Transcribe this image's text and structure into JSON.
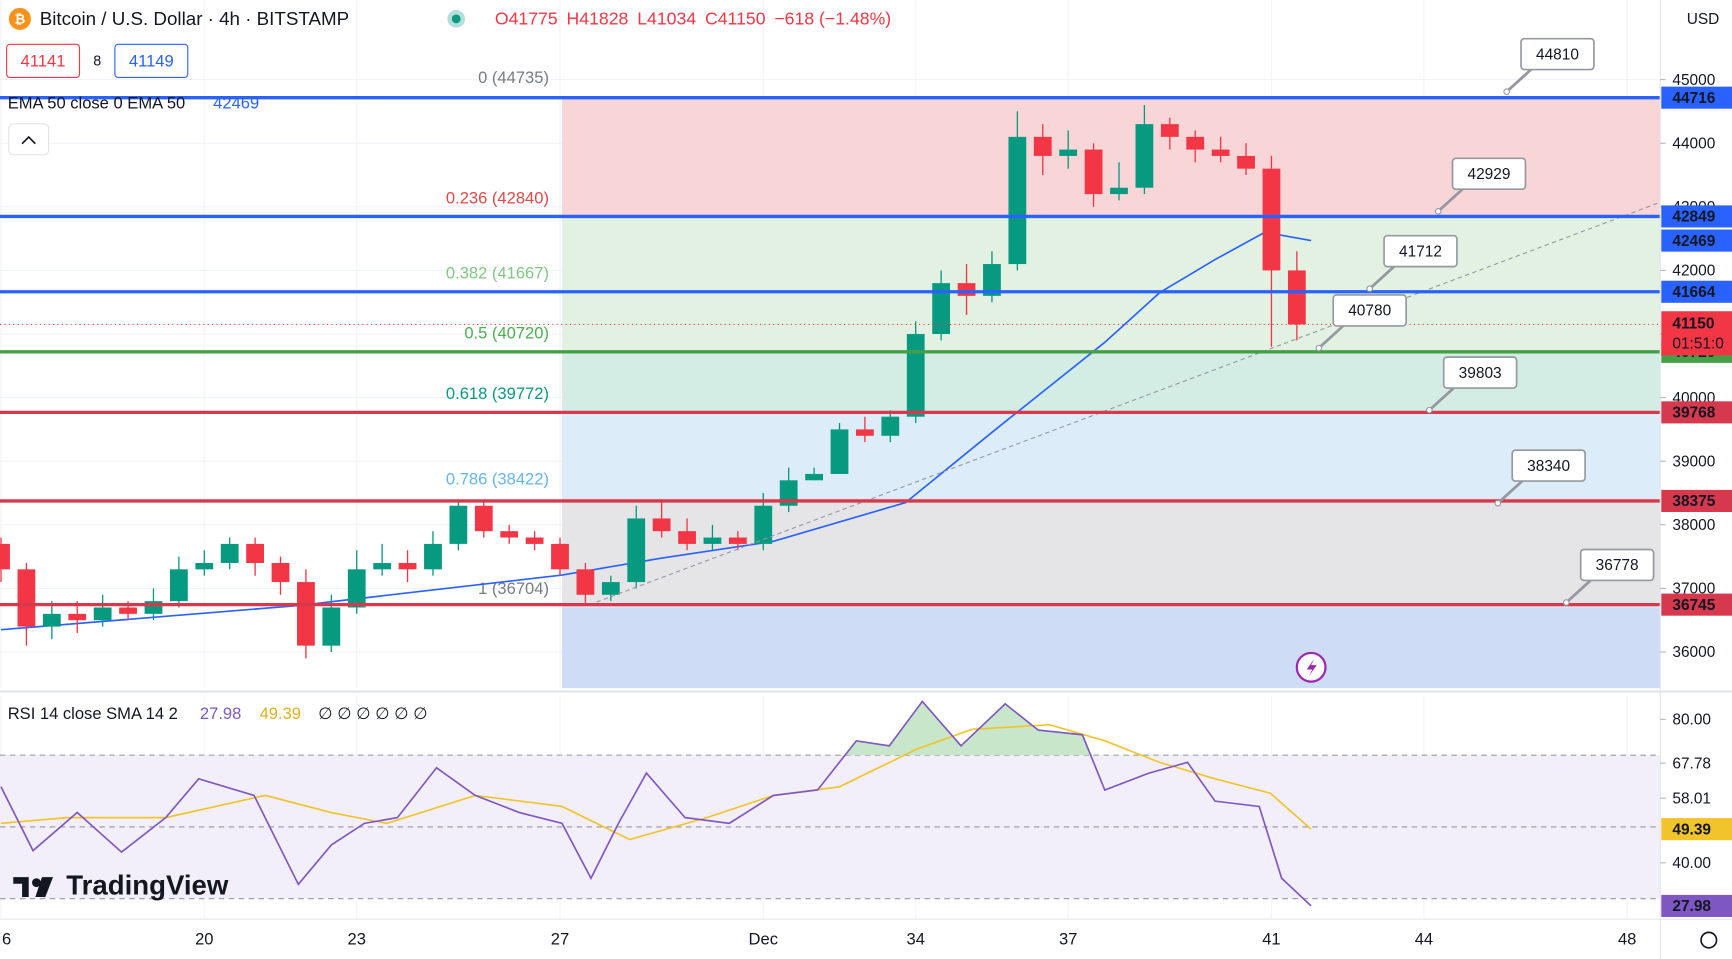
{
  "header": {
    "title": "Bitcoin / U.S. Dollar · 4h · BITSTAMP",
    "ohlc": [
      "O41775",
      "H41828",
      "L41034",
      "C41150",
      "−618 (−1.48%)"
    ],
    "bid": "41141",
    "spread": "8",
    "ask": "41149",
    "currency": "USD"
  },
  "chart_data": [
    {
      "type": "candlestick",
      "xlim": [
        15.98,
        48.65
      ],
      "xticks": [
        {
          "value": 16,
          "label": "6"
        },
        20,
        23,
        27,
        {
          "value": 31,
          "label": "Dec"
        },
        34,
        37,
        41,
        44,
        48
      ],
      "ylim": [
        35430,
        46250
      ],
      "yticks": [
        36000,
        37000,
        38000,
        39000,
        40000,
        41000,
        42000,
        43000,
        44000,
        45000
      ],
      "grid": true,
      "colors": {
        "up": "#089981",
        "down": "#f23645"
      },
      "x": [
        16,
        16.5,
        17,
        17.5,
        18,
        18.5,
        19,
        19.5,
        20,
        20.5,
        21,
        21.5,
        22,
        22.5,
        23,
        23.5,
        24,
        24.5,
        25,
        25.5,
        26,
        26.5,
        27,
        27.5,
        28,
        28.5,
        29,
        29.5,
        30,
        30.5,
        31,
        31.5,
        32,
        32.5,
        33,
        33.5,
        34,
        34.5,
        35,
        35.5,
        36,
        36.5,
        37,
        37.5,
        38,
        38.5,
        39,
        39.5,
        40,
        40.5,
        41,
        41.5
      ],
      "open": [
        37700,
        37300,
        36400,
        36600,
        36500,
        36700,
        36600,
        36800,
        37300,
        37400,
        37700,
        37400,
        37100,
        36100,
        36700,
        37300,
        37400,
        37300,
        37700,
        38300,
        37900,
        37800,
        37700,
        37300,
        36900,
        37100,
        38100,
        37900,
        37700,
        37800,
        37700,
        38300,
        38700,
        38800,
        39500,
        39400,
        39700,
        41000,
        41800,
        41600,
        42100,
        44100,
        43800,
        43900,
        43200,
        43300,
        44300,
        44100,
        43900,
        43800,
        43600,
        42000
      ],
      "high": [
        37800,
        37400,
        36800,
        36800,
        36900,
        36800,
        37000,
        37500,
        37600,
        37800,
        37800,
        37500,
        37300,
        36900,
        37600,
        37700,
        37600,
        37900,
        38400,
        38400,
        38000,
        37900,
        37800,
        37400,
        37200,
        38300,
        38400,
        38100,
        38000,
        37900,
        38500,
        38900,
        38900,
        39600,
        39700,
        39800,
        41200,
        42000,
        42100,
        42300,
        44500,
        44300,
        44200,
        44000,
        43700,
        44600,
        44400,
        44200,
        44100,
        44000,
        43800,
        42300
      ],
      "low": [
        37100,
        36100,
        36200,
        36300,
        36400,
        36500,
        36500,
        36700,
        37200,
        37300,
        37200,
        36900,
        35900,
        36000,
        36600,
        37200,
        37100,
        37200,
        37600,
        37800,
        37700,
        37600,
        37200,
        36750,
        36800,
        37000,
        37800,
        37600,
        37600,
        37600,
        37600,
        38200,
        38700,
        38800,
        39300,
        39300,
        39600,
        40900,
        41300,
        41500,
        42000,
        43500,
        43600,
        43000,
        43100,
        43200,
        43900,
        43700,
        43700,
        43500,
        40800,
        40900
      ],
      "close": [
        37300,
        36400,
        36600,
        36500,
        36700,
        36600,
        36800,
        37300,
        37400,
        37700,
        37400,
        37100,
        36100,
        36700,
        37300,
        37400,
        37300,
        37700,
        38300,
        37900,
        37800,
        37700,
        37300,
        36900,
        37100,
        38100,
        37900,
        37700,
        37800,
        37700,
        38300,
        38700,
        38800,
        39500,
        39400,
        39700,
        41000,
        41800,
        41600,
        42100,
        44100,
        43800,
        43900,
        43200,
        43300,
        44300,
        44100,
        43900,
        43800,
        43600,
        42000,
        41150
      ],
      "last": {
        "value": 41150,
        "countdown": "01:51:0",
        "color": "#f23645"
      },
      "ema": {
        "name": "EMA 50 close 0 EMA 50",
        "value": 42469,
        "color": "#2962ff",
        "x": [
          16,
          21.85,
          27.04,
          29.02,
          31.2,
          33.8,
          35.54,
          37.72,
          38.8,
          39.89,
          40.87,
          41.78
        ],
        "values": [
          36350,
          36730,
          37210,
          37480,
          37740,
          38350,
          39480,
          40870,
          41650,
          42170,
          42600,
          42469
        ]
      },
      "fib": {
        "start": 27.04,
        "levels": [
          {
            "label": "0 (44735)",
            "price": 44735,
            "color": "#787b86"
          },
          {
            "label": "0.236 (42840)",
            "price": 42840,
            "color": "#e04848"
          },
          {
            "label": "0.382 (41667)",
            "price": 41667,
            "color": "#81c784"
          },
          {
            "label": "0.5 (40720)",
            "price": 40720,
            "color": "#4caf50"
          },
          {
            "label": "0.618 (39772)",
            "price": 39772,
            "color": "#089981"
          },
          {
            "label": "0.786 (38422)",
            "price": 38422,
            "color": "#64b5f6"
          },
          {
            "label": "1 (36704)",
            "price": 36704,
            "color": "#787b86"
          }
        ],
        "zone_colors": [
          "#f8d6d8",
          "#e2f1e2",
          "#e2f1e2",
          "#d4ede4",
          "#dcecf8",
          "#e5e5e8",
          "#cfdcf6"
        ]
      },
      "levels": [
        {
          "value": 44716,
          "color": "#2962ff"
        },
        {
          "value": 42849,
          "color": "#2962ff"
        },
        {
          "value": 41664,
          "color": "#2962ff"
        },
        {
          "value": 40720,
          "color": "#43a047"
        },
        {
          "value": 39768,
          "color": "#d6394d"
        },
        {
          "value": 38375,
          "color": "#d6394d"
        },
        {
          "value": 36745,
          "color": "#d6394d"
        }
      ],
      "callouts": [
        44810,
        42929,
        41712,
        40780,
        39803,
        38340,
        36778
      ]
    },
    {
      "type": "line",
      "name": "RSI 14 close SMA 14 2",
      "placeholders": "∅ ∅ ∅ ∅ ∅ ∅",
      "xlim": [
        15.98,
        48.65
      ],
      "ylim": [
        24.3,
        86.5
      ],
      "yticks": [
        {
          "value": 40,
          "label": "40.00"
        },
        58.01,
        67.78,
        {
          "value": 80,
          "label": "80.00"
        }
      ],
      "levels": [
        70,
        50,
        30
      ],
      "series": [
        {
          "color": "#7e57c2",
          "last": 27.98,
          "x": [
            16,
            16.63,
            17.5,
            18.37,
            19.24,
            19.89,
            20.98,
            21.85,
            22.5,
            23.15,
            23.8,
            24.57,
            25.33,
            26.2,
            27.04,
            27.61,
            28.15,
            28.7,
            29.46,
            30.33,
            31.2,
            32.07,
            32.83,
            33.48,
            34.13,
            34.89,
            35.76,
            36.41,
            37.28,
            37.72,
            38.59,
            39.35,
            39.89,
            40.76,
            41.2,
            41.78
          ],
          "values": [
            61.2,
            43.4,
            54,
            43,
            52.6,
            63.4,
            58.8,
            34,
            45,
            51,
            52.6,
            66.5,
            58.8,
            54,
            51,
            35.7,
            51,
            65,
            52.6,
            51,
            58.8,
            60.3,
            74,
            72.6,
            85,
            72.6,
            84.3,
            77,
            75.7,
            60.3,
            65,
            68,
            57.2,
            55.7,
            35.7,
            27.98
          ]
        },
        {
          "color": "#f2c42b",
          "last": 49.39,
          "x": [
            16,
            17.3,
            19.24,
            21.2,
            22.5,
            23.59,
            25.33,
            27.04,
            28.37,
            29.89,
            31.2,
            32.5,
            34.02,
            35.11,
            36.63,
            37.72,
            38.8,
            39.89,
            40.98,
            41.78
          ],
          "values": [
            51,
            52.6,
            52.6,
            58.8,
            54,
            51,
            58.8,
            55.7,
            46.5,
            52.6,
            58.8,
            61.2,
            71.7,
            77.2,
            78.5,
            74,
            68,
            63.4,
            59.4,
            49.39
          ]
        }
      ]
    }
  ],
  "branding": "TradingView"
}
